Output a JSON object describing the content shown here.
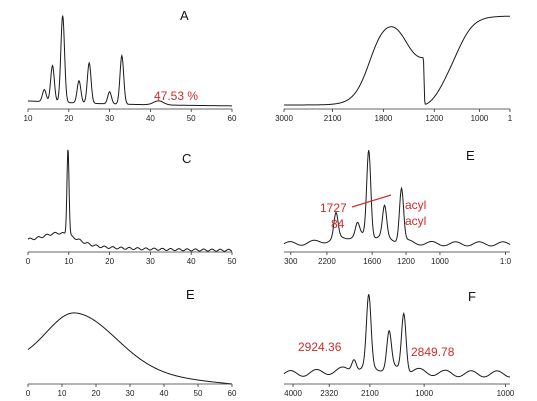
{
  "colors": {
    "line": "#1a1a1a",
    "axis": "#333333",
    "annotation": "#d42a2a"
  },
  "panels": [
    {
      "label": "A",
      "xticks": [
        "10",
        "20",
        "30",
        "40",
        "50",
        "60"
      ]
    },
    {
      "label": "",
      "xticks": [
        "3000",
        "2100",
        "1800",
        "1200",
        "1000",
        "1"
      ]
    },
    {
      "label": "C",
      "xticks": [
        "0",
        "10",
        "20",
        "30",
        "40",
        "50"
      ]
    },
    {
      "label": "E",
      "xticks": [
        "300",
        "2200",
        "1600",
        "1200",
        "1000",
        "1:0"
      ]
    },
    {
      "label": "E",
      "xticks": [
        "0",
        "10",
        "20",
        "30",
        "40",
        "50",
        "60"
      ]
    },
    {
      "label": "F",
      "xticks": [
        "4000",
        "2320",
        "2100",
        "1000",
        "1000"
      ]
    }
  ],
  "annotations": {
    "a_pct": "47.53 %",
    "e_1727": "1727",
    "e_84": "84",
    "e_acyl1": "acyl",
    "e_acyl2": "acyl",
    "f_left": "2924.36",
    "f_right": "2849.78"
  },
  "chart_data": [
    {
      "type": "line",
      "panel": "A",
      "xlim": [
        10,
        60
      ],
      "peaks": [
        {
          "x": 14,
          "height": 0.12
        },
        {
          "x": 16,
          "height": 0.36
        },
        {
          "x": 18.5,
          "height": 0.86
        },
        {
          "x": 22.5,
          "height": 0.22
        },
        {
          "x": 25,
          "height": 0.4
        },
        {
          "x": 30,
          "height": 0.12
        },
        {
          "x": 33,
          "height": 0.48
        },
        {
          "x": 42,
          "height": 0.04
        }
      ],
      "annotations": [
        "47.53 %"
      ]
    },
    {
      "type": "line",
      "panel": "B",
      "x_tick_labels": [
        "3000",
        "2100",
        "1800",
        "1200",
        "1000",
        "1"
      ],
      "features": [
        {
          "type": "band",
          "position": 0.465,
          "height": 0.92
        },
        {
          "type": "trough",
          "position": 0.685,
          "height": 0.44
        },
        {
          "type": "plateau",
          "position": 0.9,
          "height": 0.93
        }
      ]
    },
    {
      "type": "line",
      "panel": "C",
      "xlim": [
        0,
        50
      ],
      "peaks": [
        {
          "x": 9.8,
          "height": 0.86
        }
      ],
      "background": "broad low hump decaying toward high x"
    },
    {
      "type": "line",
      "panel": "E (upper)",
      "x_tick_labels": [
        "300",
        "2200",
        "1600",
        "1200",
        "1000",
        "1:0"
      ],
      "peaks": [
        {
          "position": 0.23,
          "height": 0.24
        },
        {
          "position": 0.325,
          "height": 0.12
        },
        {
          "position": 0.375,
          "height": 0.85
        },
        {
          "position": 0.445,
          "height": 0.3
        },
        {
          "position": 0.52,
          "height": 0.52
        }
      ],
      "annotations": [
        "1727",
        "84",
        "acyl",
        "acyl"
      ]
    },
    {
      "type": "line",
      "panel": "E (lower)",
      "xlim": [
        0,
        60
      ],
      "peaks": [
        {
          "x": 14,
          "height": 0.55,
          "shape": "broad"
        }
      ]
    },
    {
      "type": "line",
      "panel": "F",
      "x_tick_labels": [
        "4000",
        "2320",
        "2100",
        "1000",
        "1000"
      ],
      "peaks": [
        {
          "position": 0.31,
          "height": 0.12
        },
        {
          "position": 0.375,
          "height": 0.7
        },
        {
          "position": 0.465,
          "height": 0.36
        },
        {
          "position": 0.53,
          "height": 0.58
        }
      ],
      "annotations": [
        "2924.36",
        "2849.78"
      ]
    }
  ]
}
